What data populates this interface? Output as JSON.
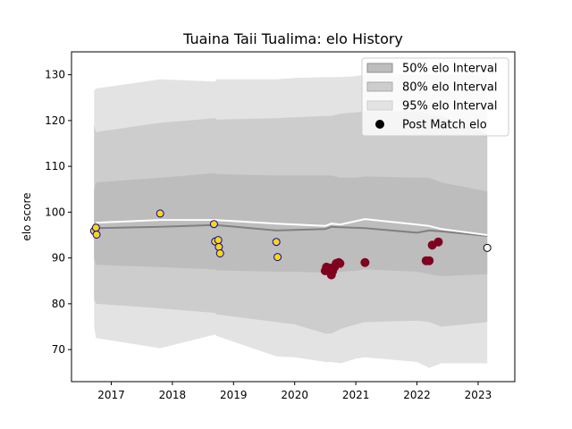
{
  "chart_data": {
    "type": "scatter",
    "title": "Tuaina Taii Tualima: elo History",
    "xlabel": "",
    "ylabel": "elo score",
    "xlim": [
      2016.35,
      2023.6
    ],
    "ylim": [
      63.0,
      135.0
    ],
    "xticks": [
      2017,
      2018,
      2019,
      2020,
      2021,
      2022,
      2023
    ],
    "yticks": [
      70,
      80,
      90,
      100,
      110,
      120,
      130
    ],
    "grid": false,
    "legend": {
      "placement": "top-right",
      "entries": [
        "50% elo Interval",
        "80% elo Interval",
        "95% elo Interval",
        "Post Match elo"
      ]
    },
    "colors": {
      "band95": "#e3e3e3",
      "band80": "#cdcdcd",
      "band50": "#bdbdbd",
      "median_line": "#808080",
      "mean_line": "#ffffff",
      "point_fill_early": "#ffd700",
      "point_edge_early": "#0000cd",
      "point_fill_late": "#800020",
      "point_fill_current": "#ffffff",
      "point_edge_current": "#000000"
    },
    "band_x": [
      2016.72,
      2016.75,
      2017.8,
      2018.7,
      2018.72,
      2019.7,
      2020.0,
      2020.5,
      2020.6,
      2020.75,
      2021.0,
      2021.15,
      2022.0,
      2022.2,
      2022.4,
      2023.15
    ],
    "band95_upper": [
      126.5,
      127.0,
      129.0,
      128.5,
      129.0,
      129.0,
      129.3,
      129.5,
      129.5,
      129.5,
      129.7,
      130.0,
      130.0,
      130.0,
      130.0,
      130.0
    ],
    "band95_lower": [
      75.0,
      72.5,
      70.3,
      73.3,
      73.0,
      68.5,
      68.3,
      67.3,
      67.3,
      67.0,
      68.0,
      68.3,
      67.3,
      66.0,
      67.0,
      67.0
    ],
    "band80_upper": [
      119.0,
      117.5,
      119.5,
      120.5,
      120.2,
      120.5,
      120.7,
      121.0,
      121.0,
      121.5,
      121.8,
      122.0,
      122.0,
      121.5,
      121.0,
      117.0
    ],
    "band80_lower": [
      81.0,
      80.0,
      79.0,
      78.0,
      77.7,
      76.0,
      75.5,
      73.5,
      73.5,
      74.5,
      75.5,
      76.0,
      76.3,
      76.0,
      75.0,
      76.0
    ],
    "band50_upper": [
      105.0,
      106.5,
      107.5,
      108.5,
      108.3,
      108.0,
      108.0,
      108.0,
      108.0,
      107.5,
      107.5,
      107.8,
      107.5,
      107.5,
      106.5,
      104.5
    ],
    "band50_lower": [
      90.0,
      88.5,
      88.0,
      87.5,
      87.3,
      87.0,
      87.0,
      86.8,
      86.8,
      87.0,
      87.2,
      87.5,
      87.0,
      86.5,
      86.0,
      86.5
    ],
    "median_x": [
      2016.75,
      2017.8,
      2018.7,
      2019.7,
      2020.5,
      2020.6,
      2020.75,
      2021.15,
      2022.0,
      2022.2,
      2022.4,
      2023.15
    ],
    "median_y": [
      96.5,
      96.8,
      97.2,
      96.0,
      96.3,
      96.8,
      96.7,
      96.5,
      95.5,
      96.0,
      95.8,
      94.8
    ],
    "mean_x": [
      2016.75,
      2017.8,
      2018.7,
      2019.7,
      2020.5,
      2020.6,
      2020.75,
      2021.15,
      2022.0,
      2022.2,
      2022.4,
      2023.15
    ],
    "mean_y": [
      97.7,
      98.3,
      98.3,
      97.5,
      97.0,
      97.5,
      97.3,
      98.5,
      97.3,
      97.0,
      96.3,
      95.0
    ],
    "points_early": [
      {
        "x": 2016.72,
        "y": 95.9
      },
      {
        "x": 2016.75,
        "y": 96.6
      },
      {
        "x": 2016.76,
        "y": 95.1
      },
      {
        "x": 2017.8,
        "y": 99.7
      },
      {
        "x": 2018.68,
        "y": 97.4
      },
      {
        "x": 2018.7,
        "y": 93.6
      },
      {
        "x": 2018.75,
        "y": 93.9
      },
      {
        "x": 2018.76,
        "y": 92.4
      },
      {
        "x": 2018.78,
        "y": 91.0
      },
      {
        "x": 2019.7,
        "y": 93.5
      },
      {
        "x": 2019.72,
        "y": 90.2
      }
    ],
    "points_late": [
      {
        "x": 2020.5,
        "y": 87.2
      },
      {
        "x": 2020.52,
        "y": 88.0
      },
      {
        "x": 2020.55,
        "y": 87.5
      },
      {
        "x": 2020.58,
        "y": 87.8
      },
      {
        "x": 2020.6,
        "y": 86.3
      },
      {
        "x": 2020.62,
        "y": 87.1
      },
      {
        "x": 2020.65,
        "y": 88.0
      },
      {
        "x": 2020.68,
        "y": 88.8
      },
      {
        "x": 2020.72,
        "y": 89.0
      },
      {
        "x": 2020.74,
        "y": 88.8
      },
      {
        "x": 2021.15,
        "y": 89.0
      },
      {
        "x": 2022.15,
        "y": 89.4
      },
      {
        "x": 2022.2,
        "y": 89.4
      },
      {
        "x": 2022.25,
        "y": 92.8
      },
      {
        "x": 2022.35,
        "y": 93.5
      }
    ],
    "point_current": {
      "x": 2023.15,
      "y": 92.2
    }
  }
}
